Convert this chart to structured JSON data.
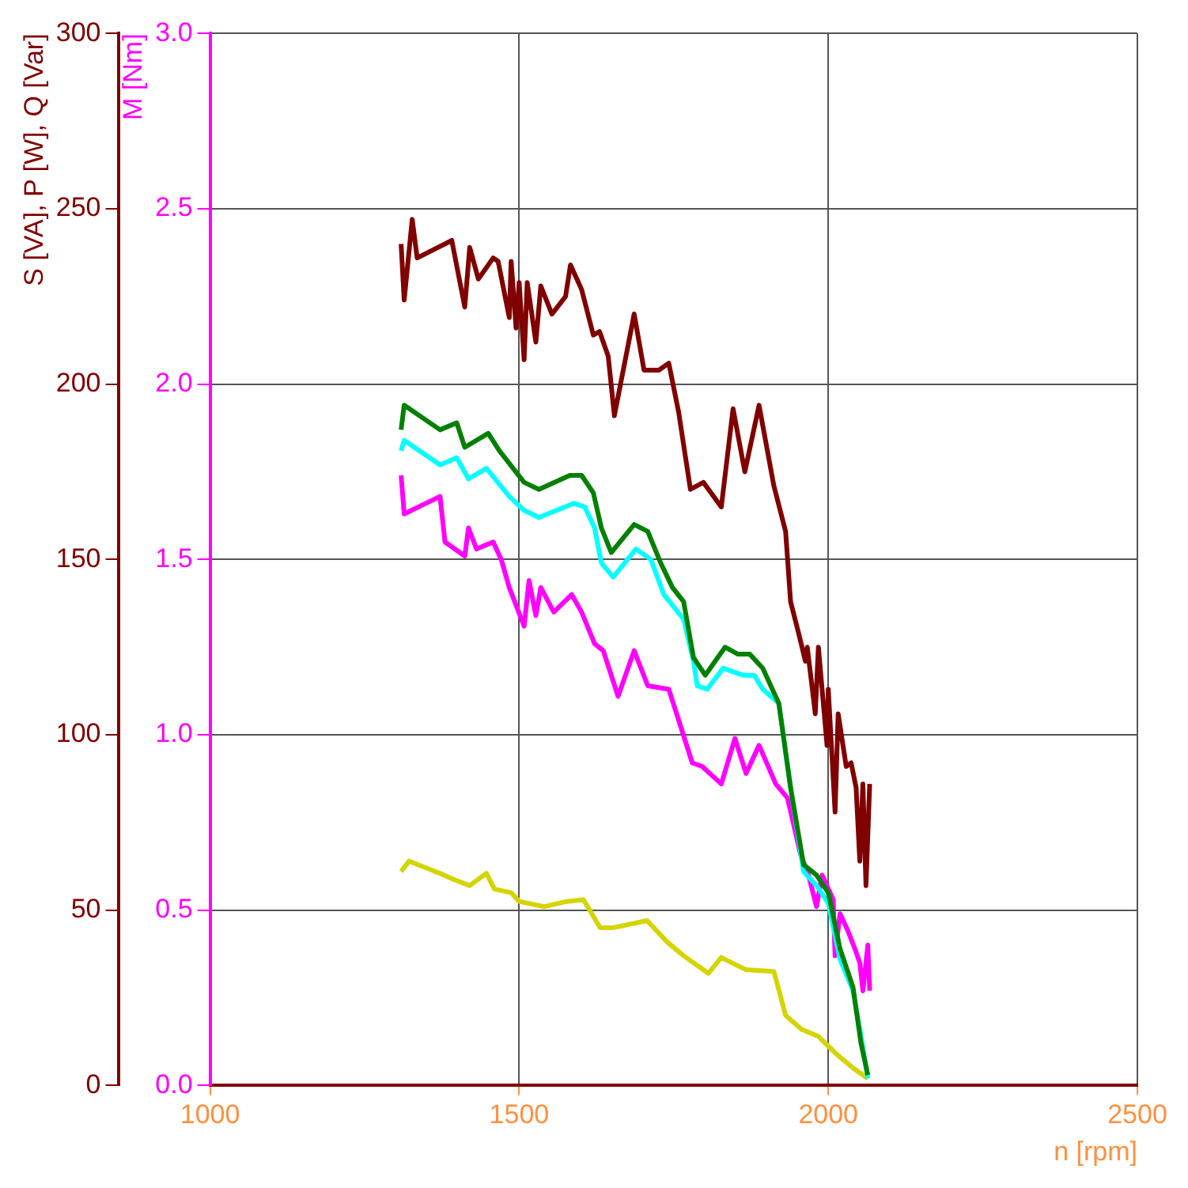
{
  "chart_data": {
    "type": "line",
    "xlabel": "n [rpm]",
    "ylabel": "S [VA], P [W], Q [Var]",
    "y2label": "M [Nm]",
    "xlim": [
      1000,
      2500
    ],
    "xticks": [
      1000,
      1500,
      2000,
      2500
    ],
    "ylim": [
      0,
      300
    ],
    "yticks": [
      0,
      50,
      100,
      150,
      200,
      250,
      300
    ],
    "y2lim": [
      0,
      3
    ],
    "y2ticks": [
      {
        "value": 0,
        "label": "0.0"
      },
      0.5,
      {
        "value": 1,
        "label": "1.0"
      },
      1.5,
      {
        "value": 2,
        "label": "2.0"
      },
      2.5,
      {
        "value": 3,
        "label": "3.0"
      }
    ],
    "grid": true,
    "legend": false,
    "marker": "none",
    "series": [
      {
        "color": "#800000",
        "x": [
          1309,
          1314,
          1327,
          1335,
          1391,
          1412,
          1420,
          1434,
          1458,
          1466,
          1484,
          1487,
          1495,
          1500,
          1508,
          1513,
          1527,
          1535,
          1553,
          1575,
          1583,
          1601,
          1620,
          1630,
          1644,
          1654,
          1686,
          1702,
          1726,
          1742,
          1758,
          1777,
          1798,
          1827,
          1846,
          1865,
          1888,
          1912,
          1931,
          1939,
          1952,
          1963,
          1966,
          1979,
          1984,
          1998,
          2000,
          2011,
          2016,
          2029,
          2037,
          2045,
          2051,
          2056,
          2061,
          2067
        ],
        "values": [
          240,
          224,
          247,
          236,
          241,
          222,
          239,
          230,
          236,
          235,
          219,
          235,
          216,
          229,
          207,
          229,
          212,
          228,
          220,
          225,
          234,
          227,
          214,
          215,
          208,
          191,
          220,
          204,
          204,
          206,
          192,
          170,
          172,
          165,
          193,
          175,
          194,
          171,
          158,
          138,
          129,
          121,
          125,
          106,
          125,
          97,
          113,
          78,
          106,
          91,
          92,
          85,
          64,
          86,
          57,
          86
        ]
      },
      {
        "color": "#008000",
        "x": [
          1309,
          1314,
          1372,
          1399,
          1412,
          1450,
          1468,
          1508,
          1532,
          1582,
          1601,
          1620,
          1633,
          1649,
          1686,
          1708,
          1729,
          1748,
          1766,
          1782,
          1801,
          1833,
          1854,
          1873,
          1894,
          1920,
          1939,
          1960,
          1981,
          2000,
          2019,
          2040,
          2053,
          2064
        ],
        "values": [
          187,
          194,
          187,
          189,
          182,
          186,
          181,
          172,
          170,
          174,
          174,
          169,
          159,
          152,
          160,
          158,
          149,
          142,
          138,
          122,
          117,
          125,
          123,
          123,
          119,
          109,
          85,
          63,
          60,
          55,
          39,
          28,
          12,
          3
        ]
      },
      {
        "color": "#00ffff",
        "x": [
          1309,
          1314,
          1372,
          1399,
          1418,
          1447,
          1484,
          1508,
          1532,
          1588,
          1606,
          1622,
          1633,
          1652,
          1689,
          1713,
          1734,
          1766,
          1782,
          1788,
          1804,
          1830,
          1862,
          1880,
          1894,
          1920,
          1939,
          1960,
          1981,
          2000,
          2019,
          2040,
          2053,
          2064
        ],
        "values": [
          181,
          184,
          177,
          179,
          173,
          176,
          168,
          164,
          162,
          166,
          165,
          159,
          149,
          145,
          153,
          150,
          140,
          133,
          121,
          114,
          113,
          119,
          117,
          117,
          113,
          109,
          85,
          61,
          57,
          52,
          36,
          27,
          14,
          2
        ]
      },
      {
        "color": "#ff00ff",
        "axis": "y2",
        "x": [
          1309,
          1314,
          1372,
          1380,
          1412,
          1418,
          1431,
          1458,
          1471,
          1484,
          1508,
          1516,
          1527,
          1535,
          1556,
          1585,
          1601,
          1622,
          1636,
          1660,
          1686,
          1708,
          1742,
          1780,
          1796,
          1827,
          1849,
          1867,
          1888,
          1915,
          1934,
          1955,
          1968,
          1981,
          1990,
          2008,
          2011,
          2019,
          2032,
          2043,
          2051,
          2056,
          2064,
          2067
        ],
        "values": [
          1.74,
          1.63,
          1.68,
          1.55,
          1.51,
          1.59,
          1.53,
          1.55,
          1.5,
          1.42,
          1.31,
          1.44,
          1.34,
          1.42,
          1.35,
          1.4,
          1.35,
          1.26,
          1.24,
          1.11,
          1.24,
          1.14,
          1.13,
          0.92,
          0.91,
          0.86,
          0.99,
          0.89,
          0.97,
          0.86,
          0.82,
          0.66,
          0.6,
          0.51,
          0.6,
          0.53,
          0.37,
          0.49,
          0.44,
          0.39,
          0.35,
          0.27,
          0.4,
          0.27
        ]
      },
      {
        "color": "#d4d400",
        "x": [
          1309,
          1322,
          1372,
          1391,
          1420,
          1447,
          1460,
          1487,
          1500,
          1540,
          1577,
          1604,
          1631,
          1652,
          1707,
          1739,
          1766,
          1806,
          1827,
          1867,
          1912,
          1931,
          1957,
          1984,
          2013,
          2040,
          2064
        ],
        "values": [
          61,
          64,
          60.5,
          59,
          57,
          60.5,
          56,
          55,
          52.5,
          51,
          52.5,
          53,
          45,
          45,
          47,
          41,
          37,
          32,
          36.5,
          33,
          32.5,
          20,
          16,
          14,
          9,
          5,
          2
        ]
      }
    ]
  }
}
